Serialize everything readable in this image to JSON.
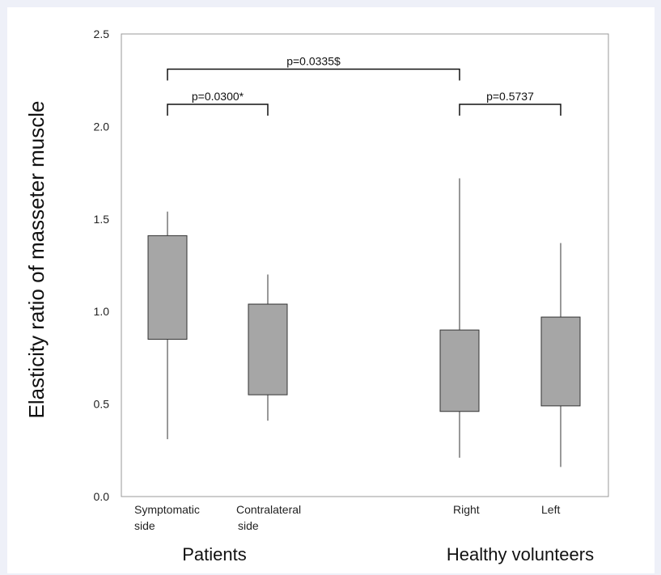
{
  "chart_data": {
    "type": "box",
    "ylabel": "Elasticity ratio of masseter muscle",
    "ylim": [
      0.0,
      2.5
    ],
    "yticks": [
      "0.0",
      "0.5",
      "1.0",
      "1.5",
      "2.0",
      "2.5"
    ],
    "groups": [
      "Patients",
      "Healthy volunteers"
    ],
    "boxes": [
      {
        "label": [
          "Symptomatic",
          "side"
        ],
        "group": "Patients",
        "min": 0.31,
        "q1": 0.85,
        "q3": 1.41,
        "max": 1.54
      },
      {
        "label": [
          "Contralateral",
          "side"
        ],
        "group": "Patients",
        "min": 0.41,
        "q1": 0.55,
        "q3": 1.04,
        "max": 1.2
      },
      {
        "label": [
          "Right"
        ],
        "group": "Healthy volunteers",
        "min": 0.21,
        "q1": 0.46,
        "q3": 0.9,
        "max": 1.72
      },
      {
        "label": [
          "Left"
        ],
        "group": "Healthy volunteers",
        "min": 0.16,
        "q1": 0.49,
        "q3": 0.97,
        "max": 1.37
      }
    ],
    "comparisons": [
      {
        "from": 0,
        "to": 2,
        "text": "p=0.0335$",
        "level": 2.31
      },
      {
        "from": 0,
        "to": 1,
        "text": "p=0.0300*",
        "level": 2.12
      },
      {
        "from": 2,
        "to": 3,
        "text": "p=0.5737",
        "level": 2.12
      }
    ],
    "colors": {
      "box_fill": "#a6a6a6",
      "box_stroke": "#333333",
      "whisker": "#777777",
      "frame": "#999999"
    }
  }
}
